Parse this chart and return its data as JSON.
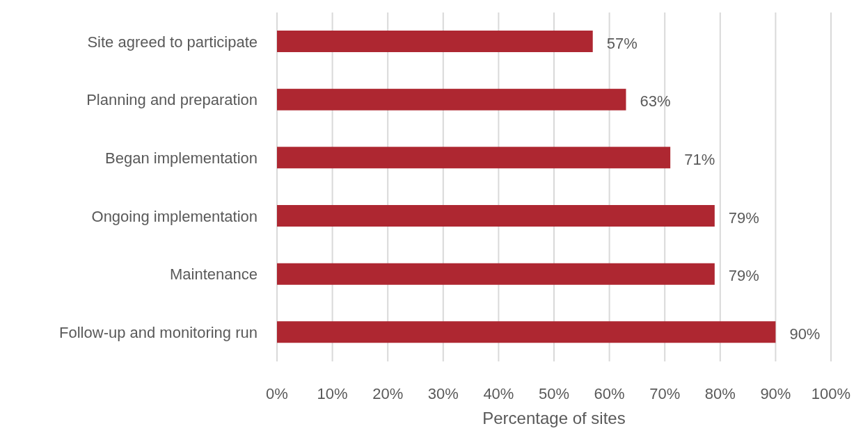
{
  "chart_data": {
    "type": "bar",
    "orientation": "horizontal",
    "xlabel": "Percentage of sites",
    "categories": [
      "Site agreed to participate",
      "Planning and preparation",
      "Began implementation",
      "Ongoing implementation",
      "Maintenance",
      "Follow-up and monitoring run"
    ],
    "values": [
      57,
      63,
      71,
      79,
      79,
      90
    ],
    "value_labels": [
      "57%",
      "63%",
      "71%",
      "79%",
      "79%",
      "90%"
    ],
    "color": "#ae2731",
    "xlim": [
      0,
      100
    ],
    "xticks": [
      {
        "value": 0,
        "label": "0%"
      },
      {
        "value": 10,
        "label": "10%"
      },
      {
        "value": 20,
        "label": "20%"
      },
      {
        "value": 30,
        "label": "30%"
      },
      {
        "value": 40,
        "label": "40%"
      },
      {
        "value": 50,
        "label": "50%"
      },
      {
        "value": 60,
        "label": "60%"
      },
      {
        "value": 70,
        "label": "70%"
      },
      {
        "value": 80,
        "label": "80%"
      },
      {
        "value": 90,
        "label": "90%"
      },
      {
        "value": 100,
        "label": "100%"
      }
    ],
    "grid": "x",
    "legend": false
  }
}
